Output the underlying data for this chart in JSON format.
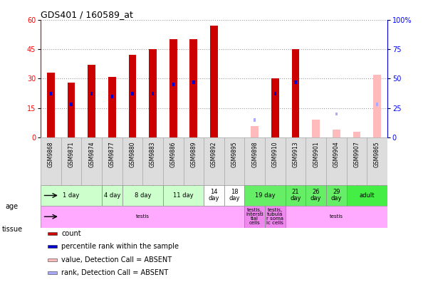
{
  "title": "GDS401 / 160589_at",
  "samples": [
    "GSM9868",
    "GSM9871",
    "GSM9874",
    "GSM9877",
    "GSM9880",
    "GSM9883",
    "GSM9886",
    "GSM9889",
    "GSM9892",
    "GSM9895",
    "GSM9898",
    "GSM9910",
    "GSM9913",
    "GSM9901",
    "GSM9904",
    "GSM9907",
    "GSM9865"
  ],
  "present": [
    true,
    true,
    true,
    true,
    true,
    true,
    true,
    true,
    true,
    true,
    false,
    true,
    true,
    false,
    false,
    false,
    false
  ],
  "count_values": [
    33,
    28,
    37,
    31,
    42,
    45,
    50,
    50,
    57,
    0,
    0,
    30,
    45,
    0,
    0,
    0,
    0
  ],
  "rank_values_pct": [
    37,
    28,
    37,
    35,
    37,
    37,
    45,
    47,
    0,
    0,
    0,
    37,
    47,
    0,
    0,
    0,
    0
  ],
  "absent_value": [
    0,
    0,
    0,
    0,
    0,
    0,
    0,
    0,
    0,
    0,
    6,
    0,
    0,
    9,
    4,
    3,
    32
  ],
  "absent_rank_pct": [
    0,
    0,
    0,
    0,
    0,
    0,
    0,
    0,
    0,
    0,
    15,
    0,
    0,
    0,
    20,
    0,
    28
  ],
  "age_groups": [
    {
      "label": "1 day",
      "start": 0,
      "end": 2,
      "color": "#ccffcc"
    },
    {
      "label": "4 day",
      "start": 3,
      "end": 3,
      "color": "#ccffcc"
    },
    {
      "label": "8 day",
      "start": 4,
      "end": 5,
      "color": "#ccffcc"
    },
    {
      "label": "11 day",
      "start": 6,
      "end": 7,
      "color": "#ccffcc"
    },
    {
      "label": "14\nday",
      "start": 8,
      "end": 8,
      "color": "#ffffff"
    },
    {
      "label": "18\nday",
      "start": 9,
      "end": 9,
      "color": "#ffffff"
    },
    {
      "label": "19 day",
      "start": 10,
      "end": 11,
      "color": "#66ee66"
    },
    {
      "label": "21\nday",
      "start": 12,
      "end": 12,
      "color": "#66ee66"
    },
    {
      "label": "26\nday",
      "start": 13,
      "end": 13,
      "color": "#66ee66"
    },
    {
      "label": "29\nday",
      "start": 14,
      "end": 14,
      "color": "#66ee66"
    },
    {
      "label": "adult",
      "start": 15,
      "end": 16,
      "color": "#44ee44"
    }
  ],
  "tissue_groups": [
    {
      "label": "testis",
      "start": 0,
      "end": 9,
      "color": "#ffaaff"
    },
    {
      "label": "testis,\nintersti\ntial\ncells",
      "start": 10,
      "end": 10,
      "color": "#ee88ee"
    },
    {
      "label": "testis,\ntubula\nr soma\nic cells",
      "start": 11,
      "end": 11,
      "color": "#ee88ee"
    },
    {
      "label": "testis",
      "start": 12,
      "end": 16,
      "color": "#ffaaff"
    }
  ],
  "ylim_left": [
    0,
    60
  ],
  "ylim_right": [
    0,
    100
  ],
  "yticks_left": [
    0,
    15,
    30,
    45,
    60
  ],
  "yticks_right": [
    0,
    25,
    50,
    75,
    100
  ],
  "bar_color": "#cc0000",
  "rank_color": "#0000cc",
  "absent_bar_color": "#ffbbbb",
  "absent_rank_color": "#aaaaff",
  "bg_color": "#ffffff",
  "grid_color": "#999999",
  "label_bg": "#dddddd"
}
